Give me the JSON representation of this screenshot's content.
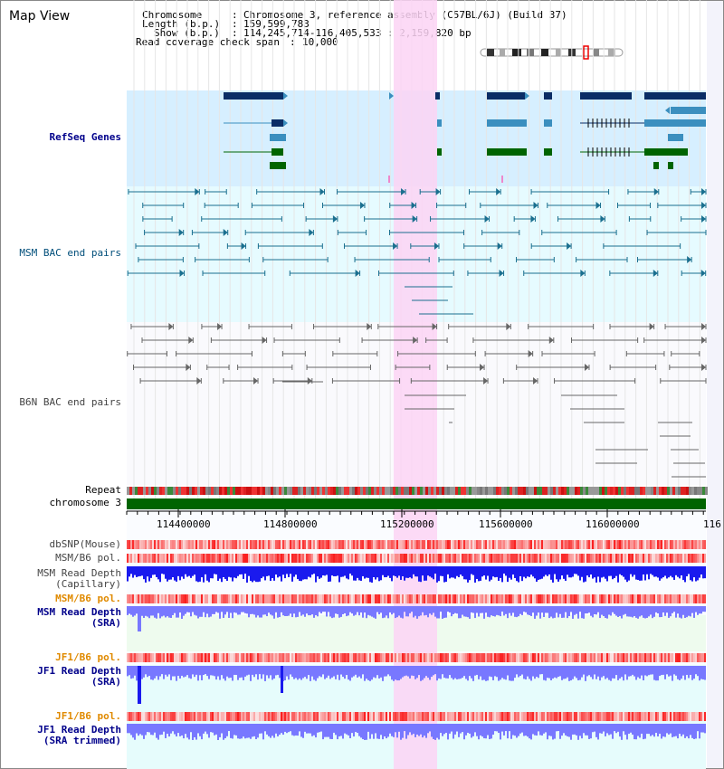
{
  "header": {
    "title": "Map View",
    "chromosome_label": "Chromosome",
    "chromosome_value": "Chromosome 3, reference assembly (C57BL/6J) (Build 37)",
    "length_label": "Length (b.p.)",
    "length_value": "159,599,783",
    "show_label": "Show (b.p.)",
    "show_value": "114,245,714-116,405,533 : 2,159,820 bp",
    "coverage_label": "Read coverage check span",
    "coverage_value": "10,000"
  },
  "tracks": {
    "refseq": "RefSeq Genes",
    "msm_bac": "MSM BAC end pairs",
    "b6n_bac": "B6N BAC end pairs",
    "repeat": "Repeat",
    "chromosome": "chromosome 3",
    "dbsnp": "dbSNP(Mouse)",
    "msm_b6_pol_1": "MSM/B6 pol.",
    "msm_depth_cap_1": "MSM Read Depth",
    "msm_depth_cap_2": "(Capillary)",
    "msm_b6_pol_2": "MSM/B6 pol.",
    "msm_depth_sra_1": "MSM Read Depth",
    "msm_depth_sra_2": "(SRA)",
    "jf1_b6_pol_1": "JF1/B6 pol.",
    "jf1_depth_sra_1": "JF1 Read Depth",
    "jf1_depth_sra_2": "(SRA)",
    "jf1_b6_pol_2": "JF1/B6 pol.",
    "jf1_depth_trim_1": "JF1 Read Depth",
    "jf1_depth_trim_2": "(SRA trimmed)"
  },
  "axis": {
    "ticks": [
      "114400000",
      "114800000",
      "115200000",
      "115600000",
      "116000000"
    ],
    "partial_tick": "116"
  },
  "colors": {
    "highlight": "#fbd4f4",
    "refseq_bg": "#d6efff",
    "bac_bg": "#e6fbff",
    "gene_dark": "#0b2d66",
    "gene_mid": "#3b8fbf",
    "gene_green": "#006400",
    "bac_teal": "#1a6f8f",
    "bac_gray": "#666666",
    "depth_blue": "#1a1aee",
    "depth_light": "#7878ff"
  }
}
